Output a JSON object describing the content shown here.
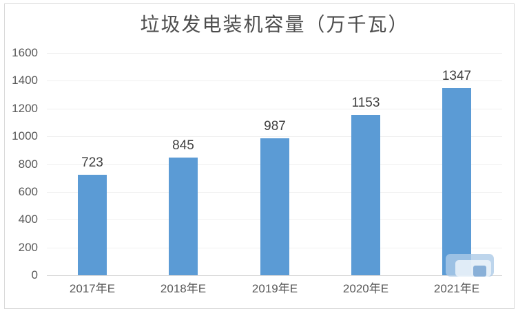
{
  "chart_data": {
    "type": "bar",
    "title": "垃圾发电装机容量（万千瓦）",
    "categories": [
      "2017年E",
      "2018年E",
      "2019年E",
      "2020年E",
      "2021年E"
    ],
    "values": [
      723,
      845,
      987,
      1153,
      1347
    ],
    "data_labels": [
      "723",
      "845",
      "987",
      "1153",
      "1347"
    ],
    "xlabel": "",
    "ylabel": "",
    "ylim": [
      0,
      1600
    ],
    "yticks": [
      0,
      200,
      400,
      600,
      800,
      1000,
      1200,
      1400,
      1600
    ],
    "grid": "horizontal",
    "legend_position": "none",
    "bar_color": "#5B9BD5"
  },
  "colors": {
    "bar": "#5B9BD5",
    "title_text": "#4d4d4d",
    "axis_text": "#595959",
    "data_label_text": "#404040",
    "gridline": "#EFEFEF",
    "axis_line": "#D9D9D9",
    "frame_border": "#D9D9D9",
    "watermark_blue": "#ADCBE7"
  },
  "watermark": {
    "icon": "nested-rounded-squares-logo"
  }
}
